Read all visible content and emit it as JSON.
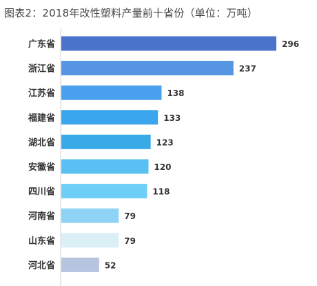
{
  "chart_data": {
    "type": "bar",
    "orientation": "horizontal",
    "title": "图表2：2018年改性塑料产量前十省份（单位：万吨）",
    "categories": [
      "广东省",
      "浙江省",
      "江苏省",
      "福建省",
      "湖北省",
      "安徽省",
      "四川省",
      "河南省",
      "山东省",
      "河北省"
    ],
    "values": [
      296,
      237,
      138,
      133,
      123,
      120,
      118,
      79,
      79,
      52
    ],
    "value_labels": [
      "296",
      "237",
      "138",
      "133",
      "123",
      "120",
      "118",
      "79",
      "79",
      "52"
    ],
    "bar_colors": [
      "#4a74cc",
      "#5595e1",
      "#48a0ef",
      "#3aa6ee",
      "#3aaae6",
      "#58c0f2",
      "#6fcef5",
      "#8ed3f6",
      "#dbeff7",
      "#b7c4e0"
    ],
    "xlim": [
      0,
      296
    ],
    "grid": false,
    "legend": "none"
  }
}
